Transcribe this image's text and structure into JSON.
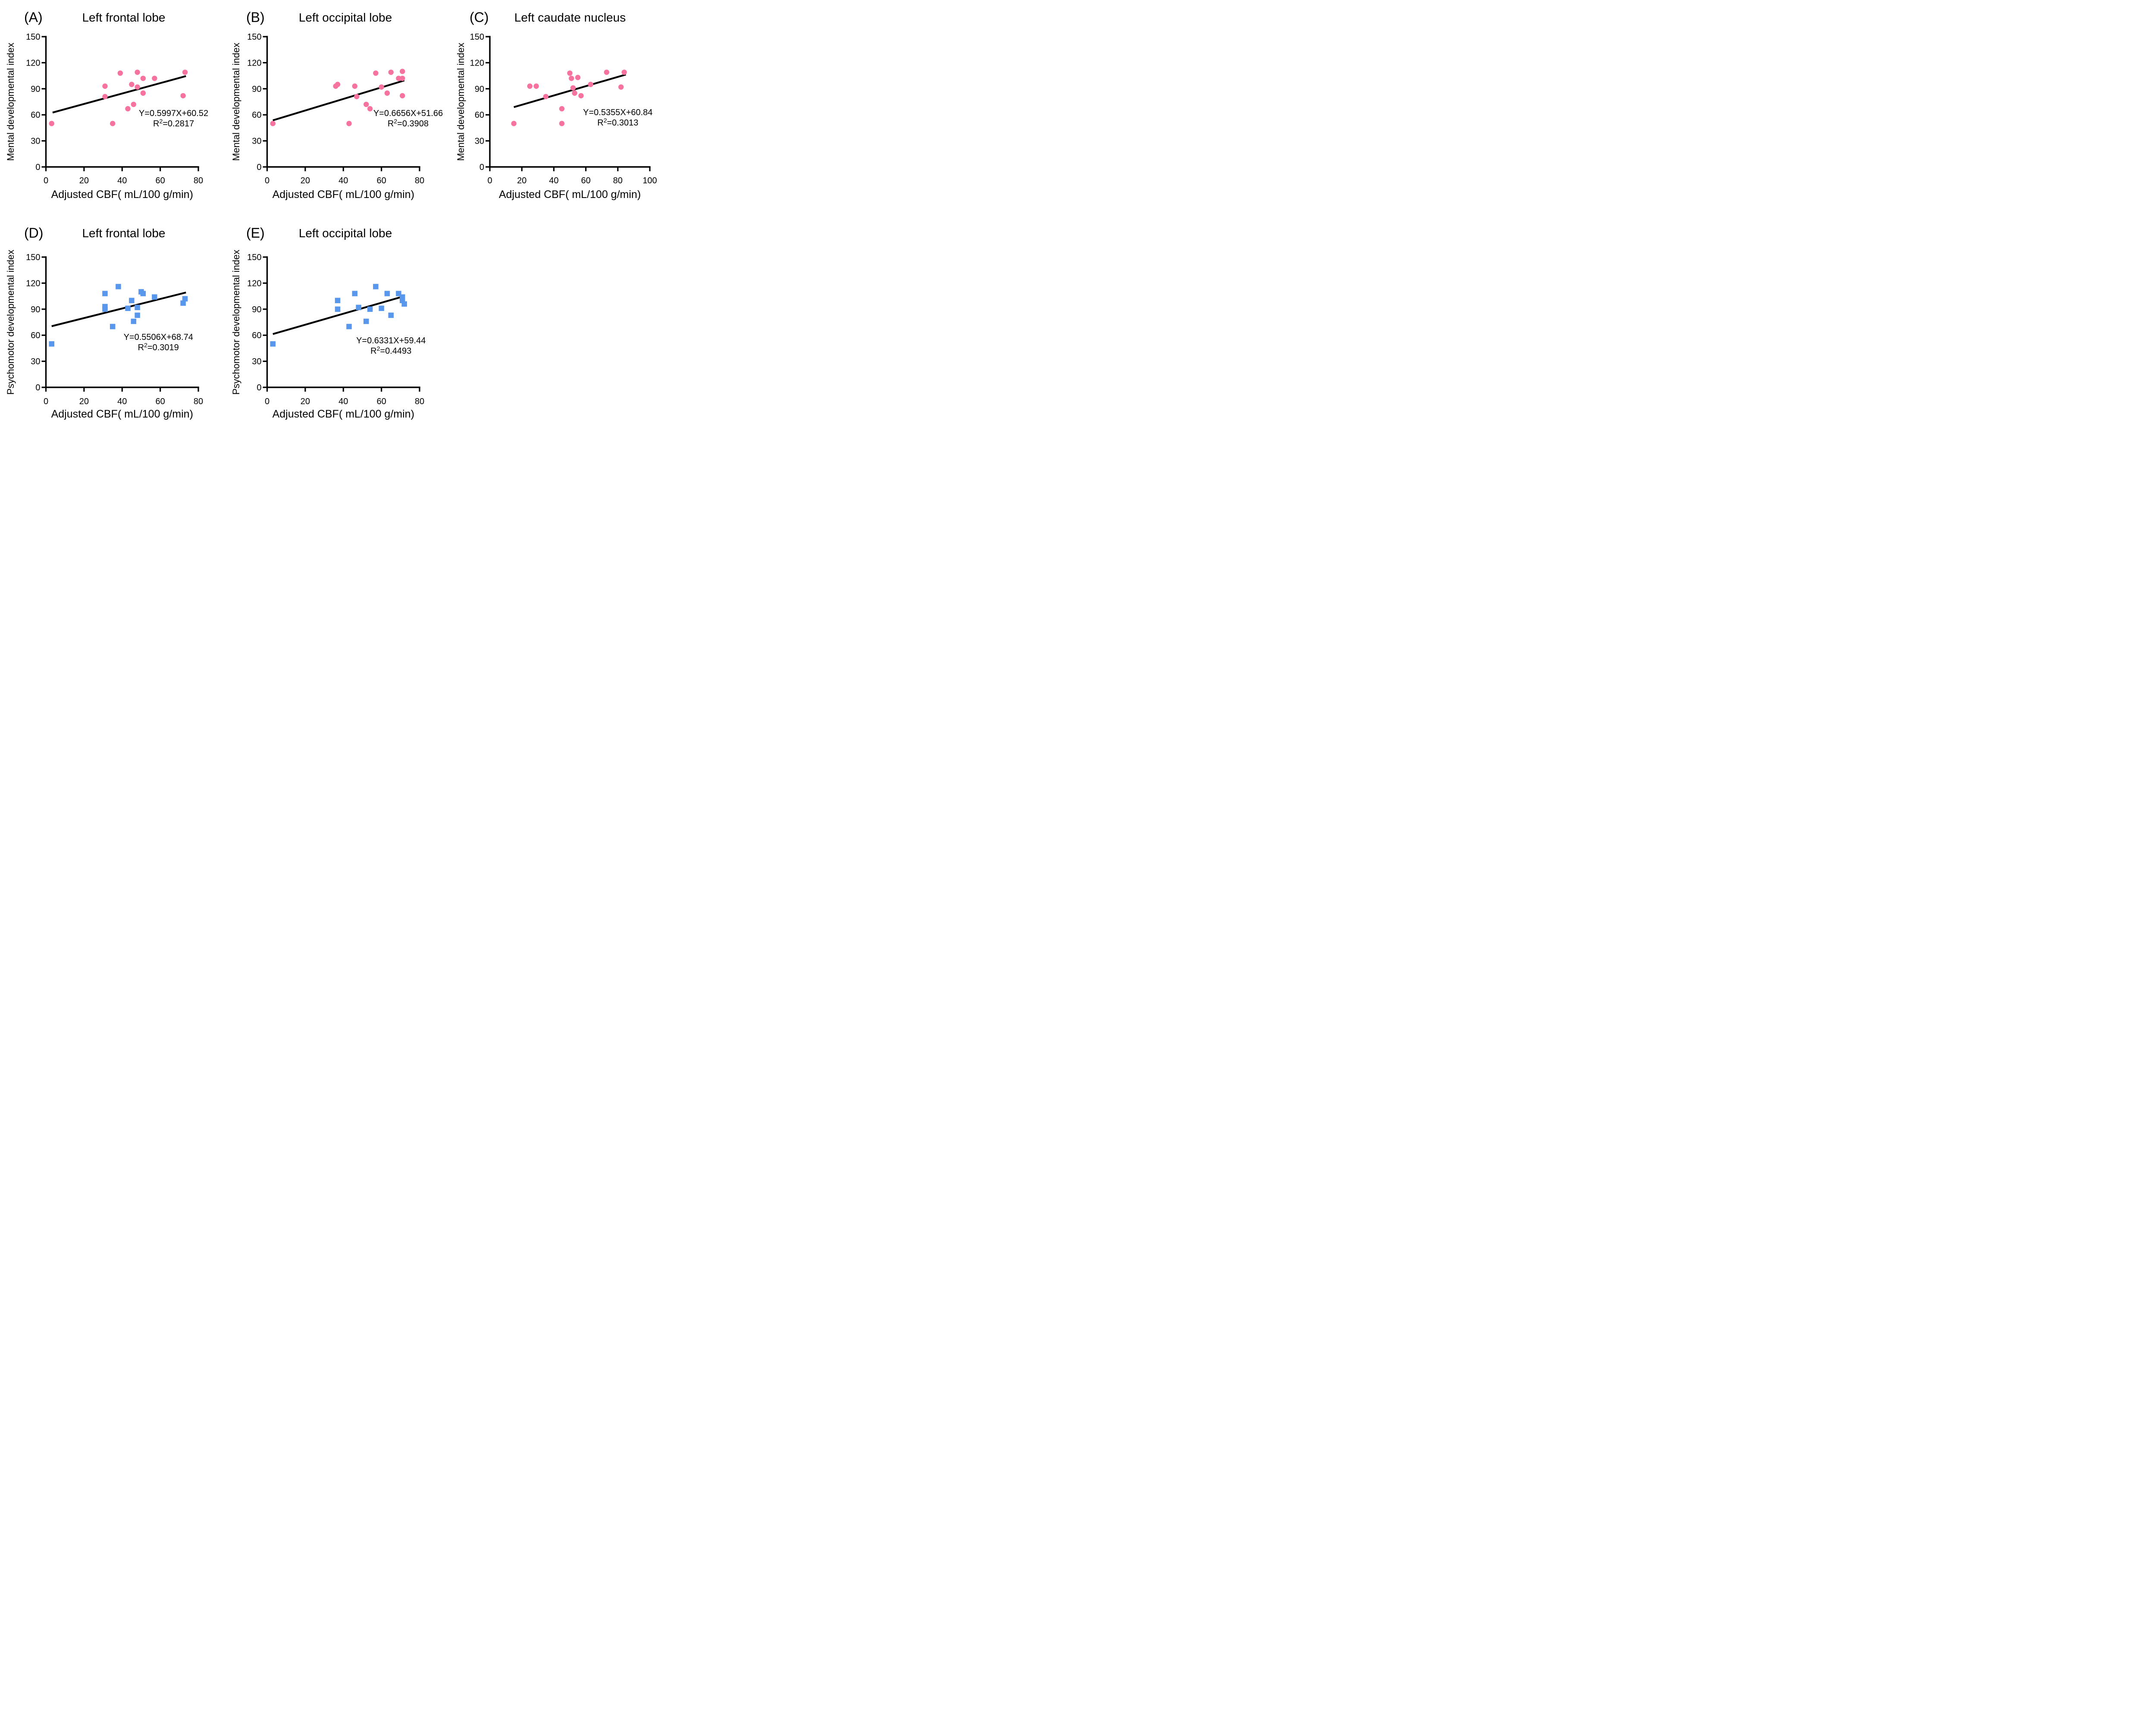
{
  "figure": {
    "background": "#ffffff",
    "text_color": "#000000",
    "axis_color": "#000000"
  },
  "chart_data": [
    {
      "panel_label": "(A)",
      "title": "Left frontal lobe",
      "type": "scatter",
      "marker": "circle",
      "marker_color": "#F5739E",
      "line_color": "#000000",
      "xlabel": "Adjusted CBF( mL/100 g/min)",
      "ylabel": "Mental developmental index",
      "xlim": [
        0,
        80
      ],
      "ylim": [
        0,
        150
      ],
      "xticks": [
        0,
        20,
        40,
        60,
        80
      ],
      "yticks": [
        0,
        30,
        60,
        90,
        120,
        150
      ],
      "grid": false,
      "legend": "none",
      "equation": "Y=0.5997X+60.52",
      "r2": "0.2817",
      "fit": {
        "slope": 0.5997,
        "intercept": 60.52,
        "x_range": [
          3.5,
          73.5
        ]
      },
      "points": [
        [
          3,
          50
        ],
        [
          31,
          81
        ],
        [
          31,
          93
        ],
        [
          35,
          50
        ],
        [
          39,
          108
        ],
        [
          43,
          67
        ],
        [
          45,
          95
        ],
        [
          46,
          72
        ],
        [
          48,
          92
        ],
        [
          48,
          109
        ],
        [
          51,
          85
        ],
        [
          51,
          102
        ],
        [
          57,
          102
        ],
        [
          72,
          82
        ],
        [
          73,
          109
        ]
      ]
    },
    {
      "panel_label": "(B)",
      "title": "Left occipital lobe",
      "type": "scatter",
      "marker": "circle",
      "marker_color": "#F5739E",
      "line_color": "#000000",
      "xlabel": "Adjusted CBF( mL/100 g/min)",
      "ylabel": "Mental developmental index",
      "xlim": [
        0,
        80
      ],
      "ylim": [
        0,
        150
      ],
      "xticks": [
        0,
        20,
        40,
        60,
        80
      ],
      "yticks": [
        0,
        30,
        60,
        90,
        120,
        150
      ],
      "grid": false,
      "legend": "none",
      "equation": "Y=0.6656X+51.66",
      "r2": "0.3908",
      "fit": {
        "slope": 0.6656,
        "intercept": 51.66,
        "x_range": [
          3,
          72
        ]
      },
      "points": [
        [
          3,
          50
        ],
        [
          36,
          93
        ],
        [
          37,
          95
        ],
        [
          43,
          50
        ],
        [
          46,
          93
        ],
        [
          47,
          81
        ],
        [
          52,
          72
        ],
        [
          54,
          67
        ],
        [
          57,
          108
        ],
        [
          60,
          92
        ],
        [
          63,
          85
        ],
        [
          65,
          109
        ],
        [
          69,
          102
        ],
        [
          71,
          82
        ],
        [
          71,
          102
        ],
        [
          71,
          110
        ]
      ]
    },
    {
      "panel_label": "(C)",
      "title": "Left caudate nucleus",
      "type": "scatter",
      "marker": "circle",
      "marker_color": "#F5739E",
      "line_color": "#000000",
      "xlabel": "Adjusted CBF( mL/100 g/min)",
      "ylabel": "Mental developmental index",
      "xlim": [
        0,
        100
      ],
      "ylim": [
        0,
        150
      ],
      "xticks": [
        0,
        20,
        40,
        60,
        80,
        100
      ],
      "yticks": [
        0,
        30,
        60,
        90,
        120,
        150
      ],
      "grid": false,
      "legend": "none",
      "equation": "Y=0.5355X+60.84",
      "r2": "0.3013",
      "fit": {
        "slope": 0.5355,
        "intercept": 60.84,
        "x_range": [
          15,
          85
        ]
      },
      "points": [
        [
          15,
          50
        ],
        [
          25,
          93
        ],
        [
          29,
          93
        ],
        [
          35,
          81
        ],
        [
          45,
          50
        ],
        [
          45,
          67
        ],
        [
          50,
          108
        ],
        [
          51,
          102
        ],
        [
          52,
          91
        ],
        [
          53,
          85
        ],
        [
          55,
          103
        ],
        [
          57,
          82
        ],
        [
          63,
          95
        ],
        [
          73,
          109
        ],
        [
          82,
          92
        ],
        [
          84,
          109
        ]
      ]
    },
    {
      "panel_label": "(D)",
      "title": "Left frontal lobe",
      "type": "scatter",
      "marker": "square",
      "marker_color": "#5897EB",
      "line_color": "#000000",
      "xlabel": "Adjusted CBF( mL/100 g/min)",
      "ylabel": "Psychomotor developmental index",
      "xlim": [
        0,
        80
      ],
      "ylim": [
        0,
        150
      ],
      "xticks": [
        0,
        20,
        40,
        60,
        80
      ],
      "yticks": [
        0,
        30,
        60,
        90,
        120,
        150
      ],
      "grid": false,
      "legend": "none",
      "equation": "Y=0.5506X+68.74",
      "r2": "0.3019",
      "fit": {
        "slope": 0.5506,
        "intercept": 68.74,
        "x_range": [
          3,
          73.5
        ]
      },
      "points": [
        [
          3,
          50
        ],
        [
          31,
          90
        ],
        [
          31,
          93
        ],
        [
          31,
          108
        ],
        [
          35,
          70
        ],
        [
          38,
          116
        ],
        [
          43,
          91
        ],
        [
          45,
          100
        ],
        [
          46,
          76
        ],
        [
          48,
          83
        ],
        [
          48,
          92
        ],
        [
          50,
          110
        ],
        [
          51,
          108
        ],
        [
          57,
          104
        ],
        [
          72,
          97
        ],
        [
          73,
          102
        ]
      ]
    },
    {
      "panel_label": "(E)",
      "title": "Left occipital lobe",
      "type": "scatter",
      "marker": "square",
      "marker_color": "#5897EB",
      "line_color": "#000000",
      "xlabel": "Adjusted CBF( mL/100 g/min)",
      "ylabel": "Psychomotor developmental index",
      "xlim": [
        0,
        80
      ],
      "ylim": [
        0,
        150
      ],
      "xticks": [
        0,
        20,
        40,
        60,
        80
      ],
      "yticks": [
        0,
        30,
        60,
        90,
        120,
        150
      ],
      "grid": false,
      "legend": "none",
      "equation": "Y=0.6331X+59.44",
      "r2": "0.4493",
      "fit": {
        "slope": 0.6331,
        "intercept": 59.44,
        "x_range": [
          3,
          70
        ]
      },
      "points": [
        [
          3,
          50
        ],
        [
          37,
          90
        ],
        [
          37,
          100
        ],
        [
          43,
          70
        ],
        [
          46,
          108
        ],
        [
          48,
          92
        ],
        [
          52,
          76
        ],
        [
          54,
          90
        ],
        [
          57,
          116
        ],
        [
          60,
          91
        ],
        [
          63,
          108
        ],
        [
          65,
          83
        ],
        [
          69,
          108
        ],
        [
          71,
          104
        ],
        [
          71,
          100
        ],
        [
          72,
          96
        ]
      ]
    }
  ]
}
